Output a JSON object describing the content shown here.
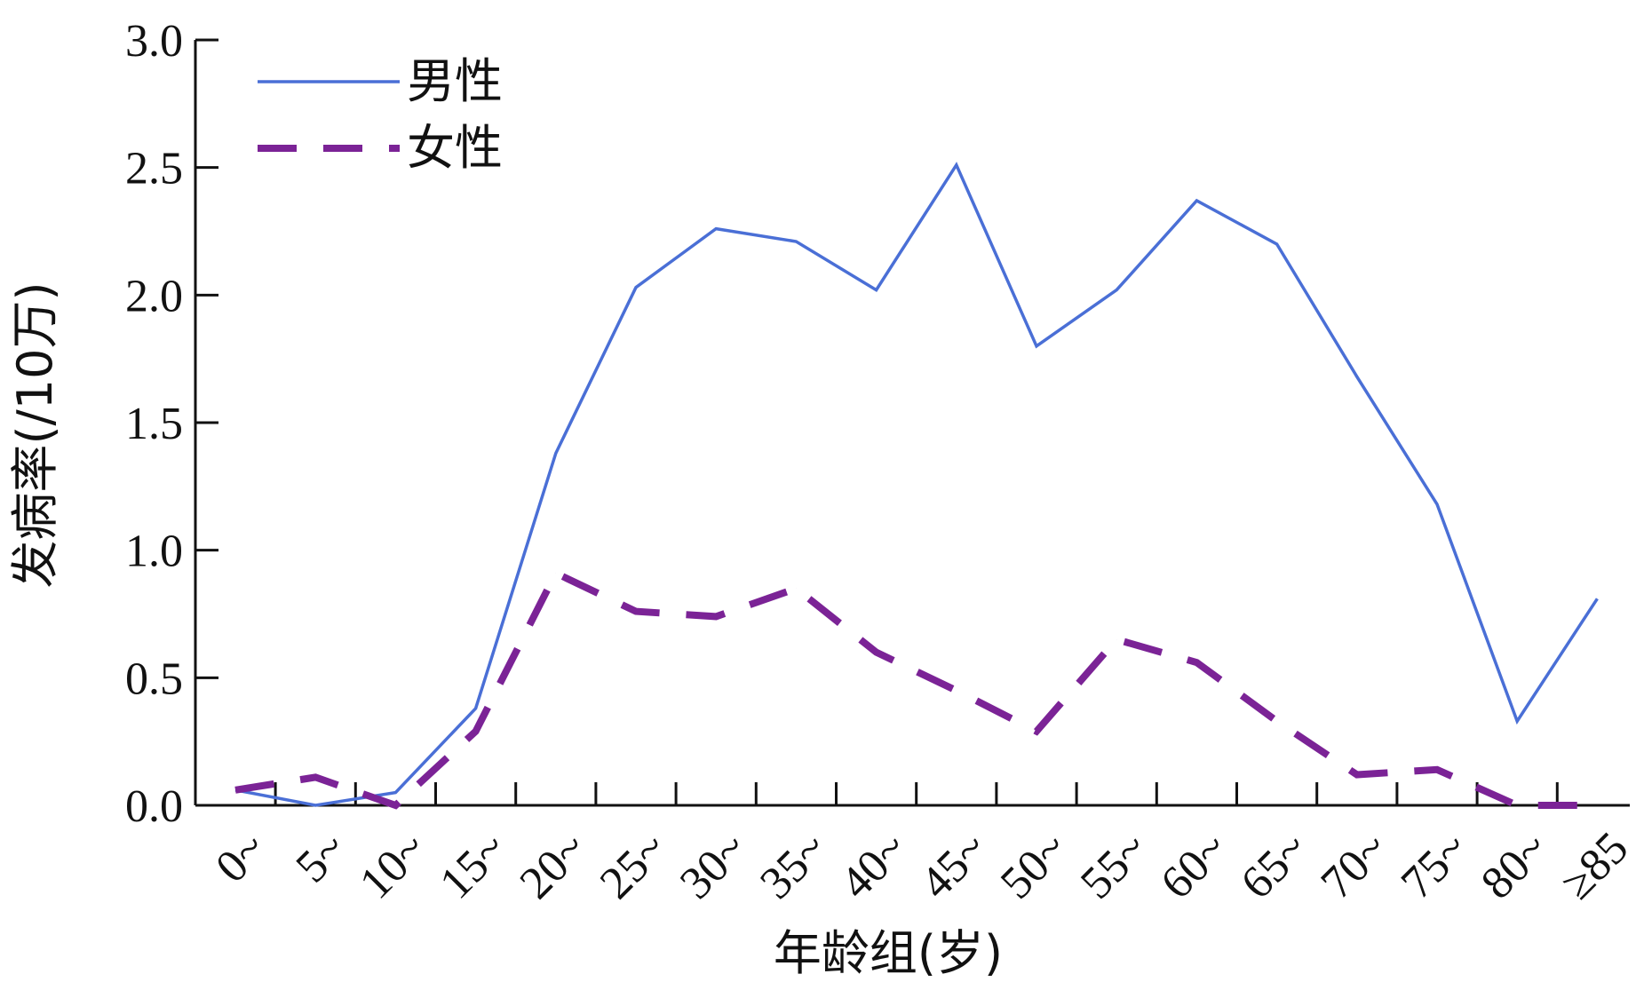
{
  "chart_data": {
    "type": "line",
    "xlabel": "年龄组(岁)",
    "ylabel": "发病率(/10万)",
    "categories": [
      "0~",
      "5~",
      "10~",
      "15~",
      "20~",
      "25~",
      "30~",
      "35~",
      "40~",
      "45~",
      "50~",
      "55~",
      "60~",
      "65~",
      "70~",
      "75~",
      "80~",
      "≥85"
    ],
    "ylim": [
      0,
      3.0
    ],
    "yticks": [
      "0.0",
      "0.5",
      "1.0",
      "1.5",
      "2.0",
      "2.5",
      "3.0"
    ],
    "grid": false,
    "legend_position": "top-left",
    "series": [
      {
        "name": "男性",
        "color": "#4a6fd6",
        "dash": "solid",
        "values": [
          0.06,
          0.0,
          0.05,
          0.38,
          1.38,
          2.03,
          2.26,
          2.21,
          2.02,
          2.51,
          1.8,
          2.02,
          2.37,
          2.2,
          1.68,
          1.18,
          0.33,
          0.81
        ]
      },
      {
        "name": "女性",
        "color": "#7b2396",
        "dash": "dashed",
        "values": [
          0.06,
          0.11,
          0.0,
          0.29,
          0.91,
          0.76,
          0.74,
          0.85,
          0.6,
          0.45,
          0.29,
          0.65,
          0.56,
          0.33,
          0.12,
          0.14,
          0.0,
          0.0
        ]
      }
    ]
  }
}
